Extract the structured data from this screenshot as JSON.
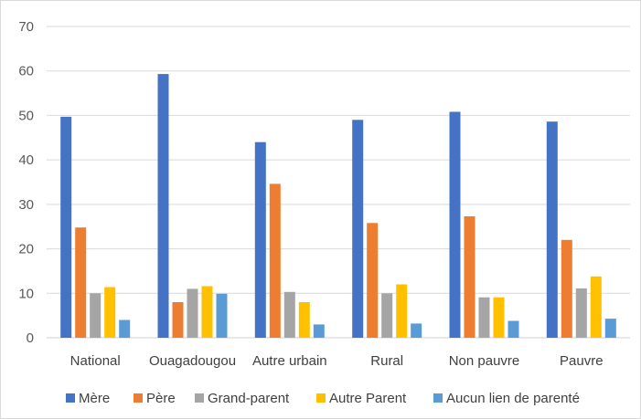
{
  "chart_data": {
    "type": "bar",
    "categories": [
      "National",
      "Ouagadougou",
      "Autre urbain",
      "Rural",
      "Non pauvre",
      "Pauvre"
    ],
    "series": [
      {
        "name": "Mère",
        "color": "#4472c4",
        "values": [
          49.7,
          59.3,
          44.0,
          49.0,
          50.8,
          48.6
        ]
      },
      {
        "name": "Père",
        "color": "#ed7d31",
        "values": [
          24.8,
          8.0,
          34.6,
          25.8,
          27.3,
          22.0
        ]
      },
      {
        "name": "Grand-parent",
        "color": "#a5a5a5",
        "values": [
          10.0,
          11.0,
          10.3,
          10.0,
          9.1,
          11.1
        ]
      },
      {
        "name": "Autre Parent",
        "color": "#ffc000",
        "values": [
          11.4,
          11.6,
          8.0,
          12.0,
          9.1,
          13.8
        ]
      },
      {
        "name": "Aucun lien de parenté",
        "color": "#5b9bd5",
        "values": [
          4.0,
          9.9,
          3.0,
          3.2,
          3.8,
          4.3
        ]
      }
    ],
    "ylim": [
      0,
      70
    ],
    "yticks": [
      "0",
      "10",
      "20",
      "30",
      "40",
      "50",
      "60",
      "70"
    ],
    "grid": true,
    "legend_position": "bottom"
  }
}
